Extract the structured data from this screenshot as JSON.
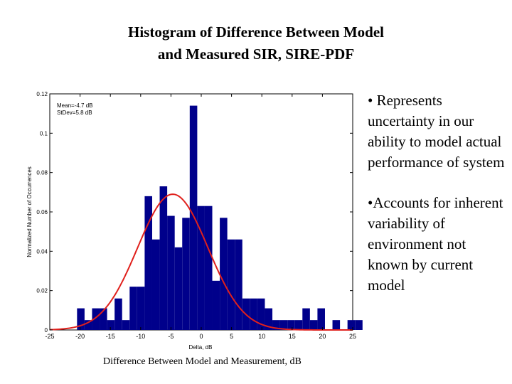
{
  "title": {
    "line1": "Histogram of Difference Between Model",
    "line2": "and Measured SIR, SIRE-PDF"
  },
  "bullets": [
    "• Represents uncertainty in our ability to model actual performance of system",
    "•Accounts for inherent variability of environment not known by current model"
  ],
  "caption": "Difference Between Model and Measurement, dB",
  "colors": {
    "bar": "#00008b",
    "curve": "#e0201c",
    "axis": "#000000"
  },
  "chart_data": {
    "type": "bar",
    "title": "",
    "xlabel": "Delta, dB",
    "ylabel": "Normalized Number of Occurrences",
    "xlim": [
      -25,
      25
    ],
    "ylim": [
      0,
      0.12
    ],
    "xticks": [
      -25,
      -20,
      -15,
      -10,
      -5,
      0,
      5,
      10,
      15,
      20,
      25
    ],
    "xtick_labels": [
      "-25",
      "-20",
      "-15",
      "-10",
      "-5",
      "0",
      "5",
      "10",
      "15",
      "20",
      "25"
    ],
    "yticks": [
      0,
      0.02,
      0.04,
      0.06,
      0.08,
      0.1,
      0.12
    ],
    "ytick_labels": [
      "0",
      "0.02",
      "0.04",
      "0.06",
      "0.08",
      "0.1",
      "0.12"
    ],
    "annotations": [
      "Mean=-4.7 dB",
      "StDev=5.8 dB"
    ],
    "bin_width": 1.24,
    "bins": [
      {
        "left": -20.5,
        "value": 0.011
      },
      {
        "left": -19.26,
        "value": 0.005
      },
      {
        "left": -18.02,
        "value": 0.011
      },
      {
        "left": -16.78,
        "value": 0.011
      },
      {
        "left": -15.54,
        "value": 0.005
      },
      {
        "left": -14.3,
        "value": 0.016
      },
      {
        "left": -13.06,
        "value": 0.005
      },
      {
        "left": -11.82,
        "value": 0.022
      },
      {
        "left": -10.58,
        "value": 0.022
      },
      {
        "left": -9.34,
        "value": 0.068
      },
      {
        "left": -8.1,
        "value": 0.046
      },
      {
        "left": -6.86,
        "value": 0.073
      },
      {
        "left": -5.62,
        "value": 0.058
      },
      {
        "left": -4.38,
        "value": 0.042
      },
      {
        "left": -3.14,
        "value": 0.057
      },
      {
        "left": -1.9,
        "value": 0.114
      },
      {
        "left": -0.66,
        "value": 0.063
      },
      {
        "left": 0.58,
        "value": 0.063
      },
      {
        "left": 1.82,
        "value": 0.025
      },
      {
        "left": 3.06,
        "value": 0.057
      },
      {
        "left": 4.3,
        "value": 0.046
      },
      {
        "left": 5.54,
        "value": 0.046
      },
      {
        "left": 6.78,
        "value": 0.016
      },
      {
        "left": 8.02,
        "value": 0.016
      },
      {
        "left": 9.26,
        "value": 0.016
      },
      {
        "left": 10.5,
        "value": 0.011
      },
      {
        "left": 11.74,
        "value": 0.005
      },
      {
        "left": 12.98,
        "value": 0.005
      },
      {
        "left": 14.22,
        "value": 0.005
      },
      {
        "left": 15.46,
        "value": 0.005
      },
      {
        "left": 16.7,
        "value": 0.011
      },
      {
        "left": 17.94,
        "value": 0.005
      },
      {
        "left": 19.18,
        "value": 0.011
      },
      {
        "left": 21.66,
        "value": 0.005
      },
      {
        "left": 24.14,
        "value": 0.005
      },
      {
        "left": 25.38,
        "value": 0.005
      }
    ],
    "fit": {
      "type": "normal",
      "mean": -4.7,
      "stdev": 5.8,
      "peak": 0.069
    }
  }
}
